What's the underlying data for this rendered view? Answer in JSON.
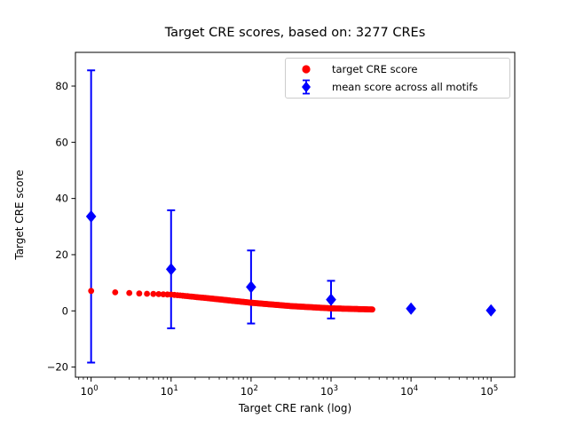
{
  "figure": {
    "title": "Target CRE scores, based on: 3277 CREs",
    "xlabel": "Target CRE rank (log)",
    "ylabel": "Target CRE score"
  },
  "colors": {
    "target_series": "#ff0000",
    "mean_series": "#0000ff",
    "axis": "#000000",
    "legend_border": "#cccccc",
    "background": "#ffffff"
  },
  "legend": {
    "items": [
      {
        "label": "target CRE score",
        "marker": "red-circle"
      },
      {
        "label": "mean score across all motifs",
        "marker": "blue-diamond-errorbar"
      }
    ]
  },
  "chart_data": {
    "type": "scatter",
    "title": "Target CRE scores, based on: 3277 CREs",
    "xlabel": "Target CRE rank (log)",
    "ylabel": "Target CRE score",
    "x_scale": "log",
    "grid": false,
    "n_cres": 3277,
    "xlim_log10": [
      -0.196,
      5.297
    ],
    "ylim": [
      -23.6,
      92.0
    ],
    "x_tick_exponents": [
      0,
      1,
      2,
      3,
      4,
      5
    ],
    "y_ticks": [
      -20,
      0,
      20,
      40,
      60,
      80
    ],
    "legend_position": "upper right",
    "series": [
      {
        "name": "target CRE score",
        "type": "scatter",
        "marker": "circle",
        "color": "#ff0000",
        "n_points": 3277,
        "rank_range": [
          1,
          3277
        ],
        "trend_log10_rank": [
          0,
          0.301,
          0.602,
          1.0,
          1.5,
          2.0,
          2.5,
          3.0,
          3.515
        ],
        "trend_score": [
          7.1,
          6.6,
          6.2,
          5.8,
          4.4,
          2.9,
          1.7,
          0.9,
          0.5
        ]
      },
      {
        "name": "mean score across all motifs",
        "type": "scatter-errorbar",
        "marker": "diamond",
        "color": "#0000ff",
        "ranks": [
          1,
          10,
          100,
          1000,
          10000,
          100000
        ],
        "means": [
          33.6,
          14.8,
          8.5,
          4.0,
          0.8,
          0.15
        ],
        "errors": [
          52.0,
          21.0,
          13.0,
          6.7,
          1.0,
          0.3
        ]
      }
    ]
  }
}
